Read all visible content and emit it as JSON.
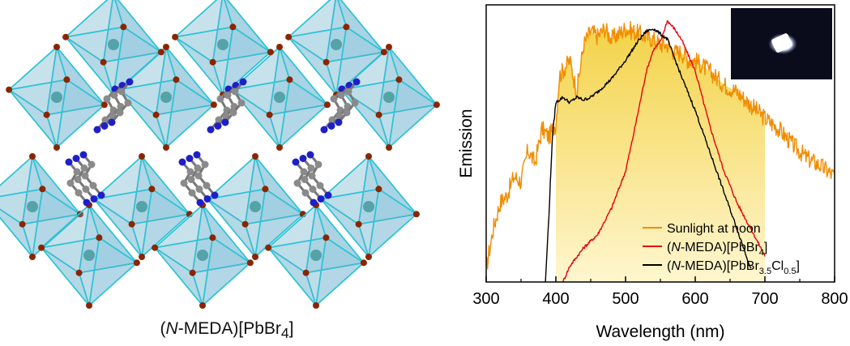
{
  "structure_panel": {
    "caption_prefix": "(",
    "caption_italic": "N",
    "caption_mid": "-MEDA)[PbBr",
    "caption_sub": "4",
    "caption_suffix": "]",
    "colors": {
      "octahedron": "#5aa9c9",
      "edge": "#2cc4d6",
      "halide": "#8b2500",
      "carbon": "#8a8a8a",
      "nitrogen": "#1f1fc8",
      "lead": "#2f8f8f"
    }
  },
  "chart_data": {
    "type": "line",
    "xlabel": "Wavelength (nm)",
    "ylabel": "Emission",
    "xlim": [
      300,
      800
    ],
    "ylim": [
      0,
      1.05
    ],
    "xticks": [
      300,
      400,
      500,
      600,
      700,
      800
    ],
    "grid": false,
    "legend_position": "bottom-right",
    "series": [
      {
        "name": "Sunlight at noon",
        "color": "#f28c00",
        "x": [
          300,
          310,
          320,
          330,
          340,
          350,
          360,
          370,
          380,
          390,
          400,
          405,
          410,
          420,
          430,
          440,
          450,
          460,
          470,
          480,
          490,
          500,
          510,
          520,
          530,
          540,
          550,
          560,
          570,
          580,
          590,
          600,
          620,
          640,
          660,
          680,
          700,
          720,
          740,
          760,
          780,
          800
        ],
        "y": [
          0.05,
          0.2,
          0.3,
          0.33,
          0.4,
          0.38,
          0.5,
          0.45,
          0.58,
          0.55,
          0.6,
          0.78,
          0.8,
          0.84,
          0.72,
          0.9,
          0.95,
          0.93,
          0.96,
          0.92,
          0.94,
          0.96,
          0.95,
          0.94,
          0.93,
          0.92,
          0.9,
          0.9,
          0.87,
          0.87,
          0.84,
          0.84,
          0.8,
          0.75,
          0.72,
          0.67,
          0.62,
          0.58,
          0.52,
          0.47,
          0.44,
          0.4
        ]
      },
      {
        "name_parts": [
          "(",
          "N",
          "-MEDA)[PbBr",
          "4",
          "]"
        ],
        "color": "#e8000b",
        "x": [
          410,
          420,
          440,
          460,
          480,
          500,
          510,
          520,
          530,
          540,
          550,
          560,
          570,
          580,
          590,
          600,
          620,
          640,
          660,
          680,
          700
        ],
        "y": [
          0.0,
          0.06,
          0.13,
          0.18,
          0.28,
          0.42,
          0.54,
          0.67,
          0.8,
          0.88,
          0.91,
          0.99,
          0.96,
          0.92,
          0.86,
          0.8,
          0.6,
          0.43,
          0.3,
          0.2,
          0.1
        ]
      },
      {
        "name_parts": [
          "(",
          "N",
          "-MEDA)[PbBr",
          "3.5",
          "Cl",
          "0.5",
          "]"
        ],
        "color": "#000000",
        "x": [
          385,
          390,
          395,
          400,
          410,
          420,
          430,
          440,
          450,
          460,
          480,
          500,
          520,
          530,
          540,
          550,
          560,
          570,
          580,
          600,
          620,
          640,
          660,
          680
        ],
        "y": [
          0.0,
          0.25,
          0.55,
          0.68,
          0.7,
          0.68,
          0.7,
          0.69,
          0.7,
          0.72,
          0.77,
          0.84,
          0.92,
          0.95,
          0.96,
          0.94,
          0.92,
          0.85,
          0.78,
          0.65,
          0.5,
          0.35,
          0.2,
          0.05
        ]
      }
    ],
    "shaded_region": {
      "x_start": 400,
      "x_end": 700,
      "colors": [
        "#f3d34a",
        "#fff6cf"
      ]
    }
  },
  "inset": {
    "background": "#0a0c1c",
    "glow": "#ffffff"
  }
}
